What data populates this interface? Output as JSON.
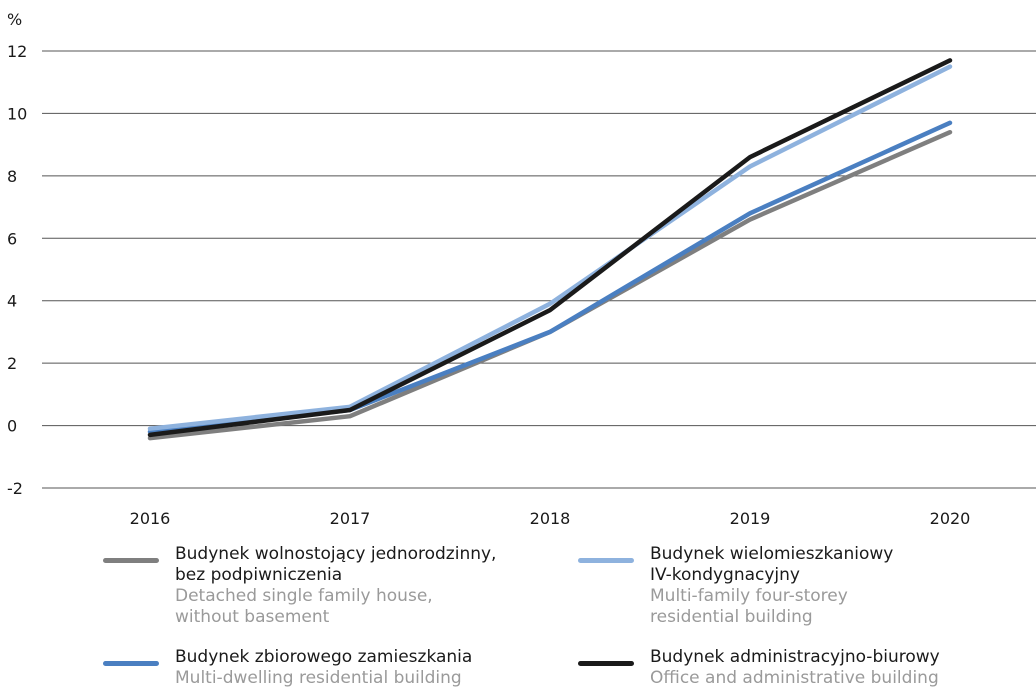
{
  "chart_data": {
    "type": "line",
    "unit_label": "%",
    "categories": [
      "2016",
      "2017",
      "2018",
      "2019",
      "2020"
    ],
    "y_ticks": [
      "12",
      "10",
      "8",
      "6",
      "4",
      "2",
      "0",
      "-2"
    ],
    "ylim": [
      -2,
      12
    ],
    "grid": true,
    "legend_position": "bottom",
    "series": [
      {
        "key": "detached",
        "name_pl_1": "Budynek wolnostojący jednorodzinny,",
        "name_pl_2": "bez podpiwniczenia",
        "name_en_1": "Detached single family house,",
        "name_en_2": "without basement",
        "color": "#7f7f7f",
        "values": [
          -0.4,
          0.3,
          3.0,
          6.6,
          9.4
        ]
      },
      {
        "key": "multidwelling",
        "name_pl_1": "Budynek zbiorowego zamieszkania",
        "name_en_1": "Multi-dwelling residential building",
        "color": "#4a7fc1",
        "values": [
          -0.2,
          0.5,
          3.0,
          6.8,
          9.7
        ]
      },
      {
        "key": "multifamily",
        "name_pl_1": "Budynek wielomieszkaniowy",
        "name_pl_2": "IV-kondygnacyjny",
        "name_en_1": "Multi-family four-storey",
        "name_en_2": "residential building",
        "color": "#8eb2de",
        "values": [
          -0.1,
          0.6,
          3.9,
          8.3,
          11.5
        ]
      },
      {
        "key": "office",
        "name_pl_1": "Budynek administracyjno-biurowy",
        "name_en_1": "Office and administrative building",
        "color": "#1a1a1a",
        "values": [
          -0.3,
          0.5,
          3.7,
          8.6,
          11.7
        ]
      }
    ]
  }
}
